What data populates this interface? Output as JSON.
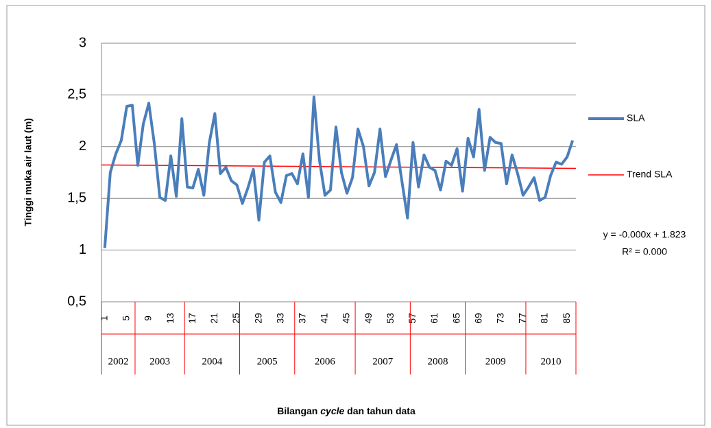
{
  "chart_data": {
    "type": "line",
    "ylabel": "Tinggi muka air laut (m)",
    "xlabel_parts": [
      "Bilangan ",
      "cycle",
      " dan tahun data"
    ],
    "x": [
      1,
      2,
      3,
      4,
      5,
      6,
      7,
      8,
      9,
      10,
      11,
      12,
      13,
      14,
      15,
      16,
      17,
      18,
      19,
      20,
      21,
      22,
      23,
      24,
      25,
      26,
      27,
      28,
      29,
      30,
      31,
      32,
      33,
      34,
      35,
      36,
      37,
      38,
      39,
      40,
      41,
      42,
      43,
      44,
      45,
      46,
      47,
      48,
      49,
      50,
      51,
      52,
      53,
      54,
      55,
      56,
      57,
      58,
      59,
      60,
      61,
      62,
      63,
      64,
      65,
      66,
      67,
      68,
      69,
      70,
      71,
      72,
      73,
      74,
      75,
      76,
      77,
      78,
      79,
      80,
      81,
      82,
      83,
      84,
      85,
      86
    ],
    "xlim": [
      0.4,
      86.6
    ],
    "xticks": [
      1,
      5,
      9,
      13,
      17,
      21,
      25,
      29,
      33,
      37,
      41,
      45,
      49,
      53,
      57,
      61,
      65,
      69,
      73,
      77,
      81,
      85
    ],
    "years": [
      "2002",
      "2003",
      "2004",
      "2005",
      "2006",
      "2007",
      "2008",
      "2009",
      "2010"
    ],
    "ylim": [
      0.5,
      3
    ],
    "yticks": [
      {
        "value": 0.5,
        "label": "0,5"
      },
      1,
      {
        "value": 1.5,
        "label": "1,5"
      },
      2,
      {
        "value": 2.5,
        "label": "2,5"
      },
      3
    ],
    "grid": true,
    "series": [
      {
        "name": "SLA",
        "color": "#4a7ebb",
        "values": [
          1.02,
          1.75,
          1.93,
          2.06,
          2.39,
          2.4,
          1.82,
          2.22,
          2.42,
          2.03,
          1.51,
          1.48,
          1.91,
          1.52,
          2.27,
          1.61,
          1.6,
          1.78,
          1.53,
          2.04,
          2.32,
          1.74,
          1.8,
          1.67,
          1.63,
          1.45,
          1.6,
          1.78,
          1.29,
          1.85,
          1.91,
          1.56,
          1.46,
          1.72,
          1.74,
          1.64,
          1.93,
          1.51,
          2.48,
          1.87,
          1.53,
          1.58,
          2.19,
          1.75,
          1.55,
          1.7,
          2.17,
          2.0,
          1.62,
          1.75,
          2.17,
          1.71,
          1.87,
          2.02,
          1.66,
          1.31,
          2.04,
          1.61,
          1.92,
          1.8,
          1.77,
          1.58,
          1.86,
          1.82,
          1.98,
          1.57,
          2.08,
          1.9,
          2.36,
          1.77,
          2.09,
          2.04,
          2.03,
          1.64,
          1.92,
          1.74,
          1.53,
          1.61,
          1.7,
          1.48,
          1.51,
          1.72,
          1.85,
          1.83,
          1.9,
          2.06
        ]
      },
      {
        "name": "Trend SLA",
        "color": "#ff0000",
        "x": [
          0.4,
          86.6
        ],
        "values": [
          1.823,
          1.79
        ]
      }
    ],
    "equation": "y = -0.000x + 1.823",
    "r_squared": "R² = 0.000"
  }
}
